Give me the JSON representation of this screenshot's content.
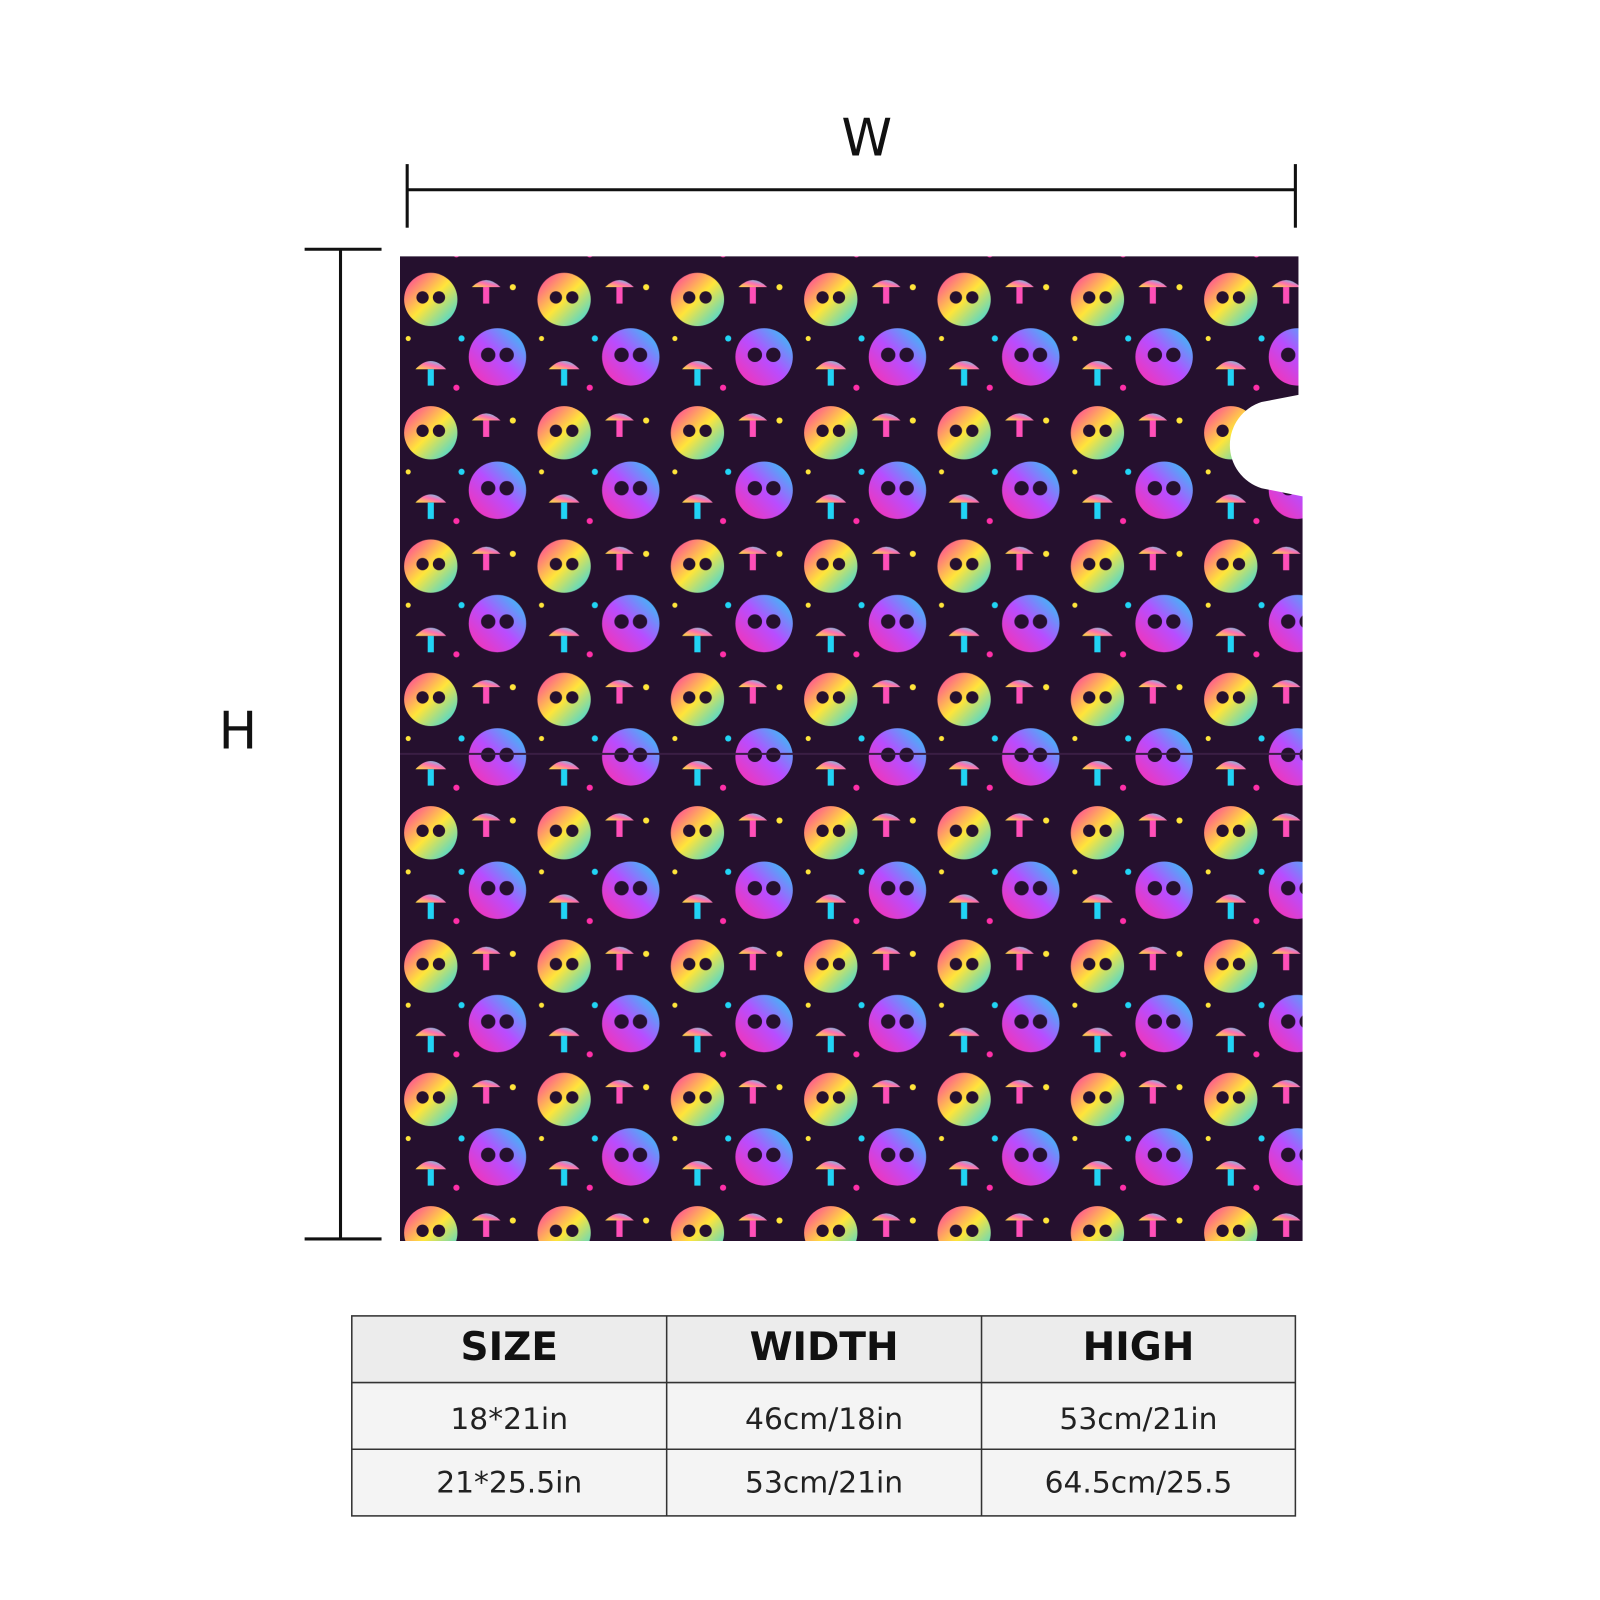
{
  "dimension_labels": {
    "width": "W",
    "height": "H"
  },
  "table": {
    "header": [
      "SIZE",
      "WIDTH",
      "HIGH"
    ],
    "rows": [
      [
        "18*21in",
        "46cm/18in",
        "53cm/21in"
      ],
      [
        "21*25.5in",
        "53cm/21in",
        "64.5cm/25.5"
      ]
    ]
  }
}
